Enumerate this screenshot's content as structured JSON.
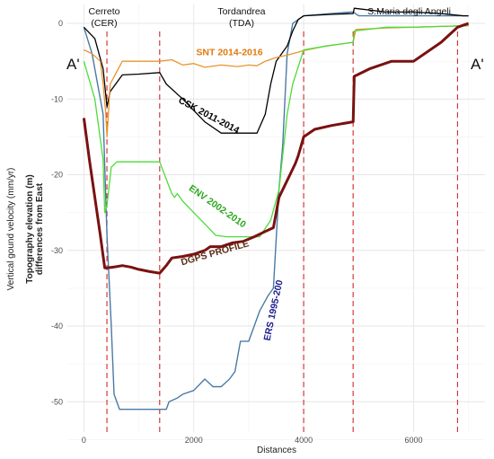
{
  "chart_data": {
    "type": "line",
    "title": "",
    "xlabel": "Distances",
    "ylabel": "Vertical gound velocity (mm/yr)",
    "y2label_line1": "Topography elevation (m)",
    "y2label_line2": "differences from East",
    "xlim": [
      -300,
      7300
    ],
    "ylim": [
      -54,
      2.5
    ],
    "x_ticks": [
      0,
      2000,
      4000,
      6000
    ],
    "y_ticks": [
      0,
      -10,
      -20,
      -30,
      -40,
      -50
    ],
    "grid": true,
    "zones": [
      {
        "name": "Cerreto",
        "abbr": "(CER)",
        "x": 370
      },
      {
        "name": "Tordandrea",
        "abbr": "(TDA)",
        "x": 2870
      },
      {
        "name": "S.Maria degli Angeli",
        "abbr": "",
        "x": 5920
      }
    ],
    "end_labels": {
      "left": "A'",
      "right": "A'"
    },
    "vlines_x": [
      420,
      1380,
      4000,
      4900,
      6800
    ],
    "colors": {
      "vline": "#d62728",
      "grid": "#e6e6e6"
    },
    "series": [
      {
        "name": "ERS 1995-200",
        "color": "#4a7aa5",
        "width": 1.4,
        "label_x": 3500,
        "label_y": -38,
        "label_rotate": -78,
        "label_color": "#1a1a8c",
        "x": [
          0,
          150,
          350,
          420,
          500,
          550,
          650,
          1000,
          1400,
          1500,
          1550,
          1700,
          1800,
          2000,
          2200,
          2350,
          2500,
          2650,
          2750,
          2850,
          3000,
          3200,
          3350,
          3450,
          3550,
          3620,
          3700,
          3800,
          3900,
          4000,
          4500,
          4850,
          4900,
          5000,
          6000,
          6800,
          7000
        ],
        "y": [
          -0.5,
          -4,
          -12,
          -28,
          -40,
          -49,
          -51,
          -51,
          -51,
          -51,
          -50,
          -49.5,
          -49,
          -48.5,
          -47,
          -48,
          -48,
          -47,
          -46,
          -42,
          -42,
          -38,
          -36,
          -35,
          -22,
          -16,
          -4,
          0,
          0.5,
          1,
          1.3,
          1.5,
          1.5,
          1,
          1,
          1,
          1
        ]
      },
      {
        "name": "CSK 2011-2014",
        "color": "#000000",
        "width": 1.3,
        "label_x": 2250,
        "label_y": -12.5,
        "label_rotate": 28,
        "label_color": "#000000",
        "x": [
          0,
          200,
          350,
          420,
          480,
          700,
          1000,
          1380,
          1500,
          1800,
          2200,
          2500,
          2700,
          3000,
          3150,
          3300,
          3400,
          3500,
          3600,
          3700,
          3800,
          3900,
          4000,
          4500,
          4900,
          4920,
          5500,
          6000,
          6500,
          6900,
          7000
        ],
        "y": [
          -0.5,
          -2,
          -6,
          -11,
          -9,
          -6.8,
          -6.7,
          -6.5,
          -8,
          -10,
          -13,
          -14.5,
          -14.5,
          -14.5,
          -14.5,
          -12,
          -8,
          -5,
          -4,
          -3,
          -1,
          0.5,
          1,
          1.2,
          1.3,
          2,
          1.5,
          1.5,
          1.3,
          1,
          1
        ]
      },
      {
        "name": "SNT 2014-2016",
        "color": "#e8952e",
        "width": 1.3,
        "label_x": 2650,
        "label_y": -4.2,
        "label_rotate": 0,
        "label_color": "#e07a0e",
        "x": [
          0,
          150,
          300,
          350,
          400,
          420,
          480,
          700,
          1000,
          1380,
          1600,
          1800,
          2000,
          2200,
          2500,
          2800,
          3000,
          3150,
          3300,
          3500,
          3700,
          3900,
          4000,
          4400,
          4900,
          4950,
          5500,
          6000,
          6500,
          7000
        ],
        "y": [
          -3.5,
          -4,
          -5,
          -8,
          -12,
          -15,
          -8,
          -5,
          -5,
          -5,
          -4.8,
          -5.5,
          -5.3,
          -5.8,
          -5.5,
          -5.7,
          -5.5,
          -5.6,
          -5,
          -4.5,
          -4.2,
          -3.8,
          -3.6,
          -3,
          -2.5,
          -0.8,
          -0.6,
          -0.5,
          -0.4,
          -0.3
        ]
      },
      {
        "name": "ENV 2002-2010",
        "color": "#4ddc3a",
        "width": 1.3,
        "label_x": 2400,
        "label_y": -24.5,
        "label_rotate": 35,
        "label_color": "#2aa81d",
        "x": [
          0,
          200,
          350,
          380,
          420,
          500,
          600,
          1000,
          1380,
          1600,
          1650,
          1700,
          1800,
          2000,
          2200,
          2400,
          2600,
          3000,
          3200,
          3400,
          3550,
          3700,
          3800,
          4000,
          4400,
          4900,
          4920,
          5500,
          6000,
          6500,
          7000
        ],
        "y": [
          -5,
          -10,
          -18,
          -25,
          -24,
          -19,
          -18.3,
          -18.3,
          -18.3,
          -22.5,
          -23,
          -22.5,
          -23.5,
          -25,
          -26.5,
          -28,
          -28.2,
          -28.2,
          -28.2,
          -26,
          -22,
          -12,
          -8,
          -3.5,
          -3,
          -2.5,
          -1,
          -0.5,
          -0.5,
          -0.4,
          -0.3
        ]
      },
      {
        "name": "DGPS PROFILE",
        "color": "#7a1111",
        "width": 3.0,
        "label_x": 2400,
        "label_y": -30.7,
        "label_rotate": -16,
        "label_color": "#5c2a12",
        "x": [
          0,
          100,
          200,
          300,
          380,
          420,
          550,
          700,
          850,
          1000,
          1200,
          1380,
          1500,
          1600,
          1800,
          2000,
          2200,
          2300,
          2500,
          2700,
          2900,
          3100,
          3300,
          3450,
          3550,
          3650,
          3750,
          3850,
          3900,
          4000,
          4200,
          4500,
          4900,
          4920,
          5200,
          5600,
          6000,
          6500,
          6800,
          7000
        ],
        "y": [
          -12.5,
          -18,
          -23,
          -28,
          -32.3,
          -32.3,
          -32.2,
          -32,
          -32.2,
          -32.5,
          -32.8,
          -33,
          -32,
          -31,
          -30.8,
          -30.5,
          -30,
          -29.5,
          -29.5,
          -29,
          -28.8,
          -28.2,
          -27.5,
          -27,
          -23,
          -21.5,
          -20,
          -18.5,
          -17.5,
          -15,
          -14,
          -13.5,
          -13,
          -7,
          -6,
          -5,
          -5,
          -2.5,
          -0.5,
          0
        ]
      }
    ]
  }
}
